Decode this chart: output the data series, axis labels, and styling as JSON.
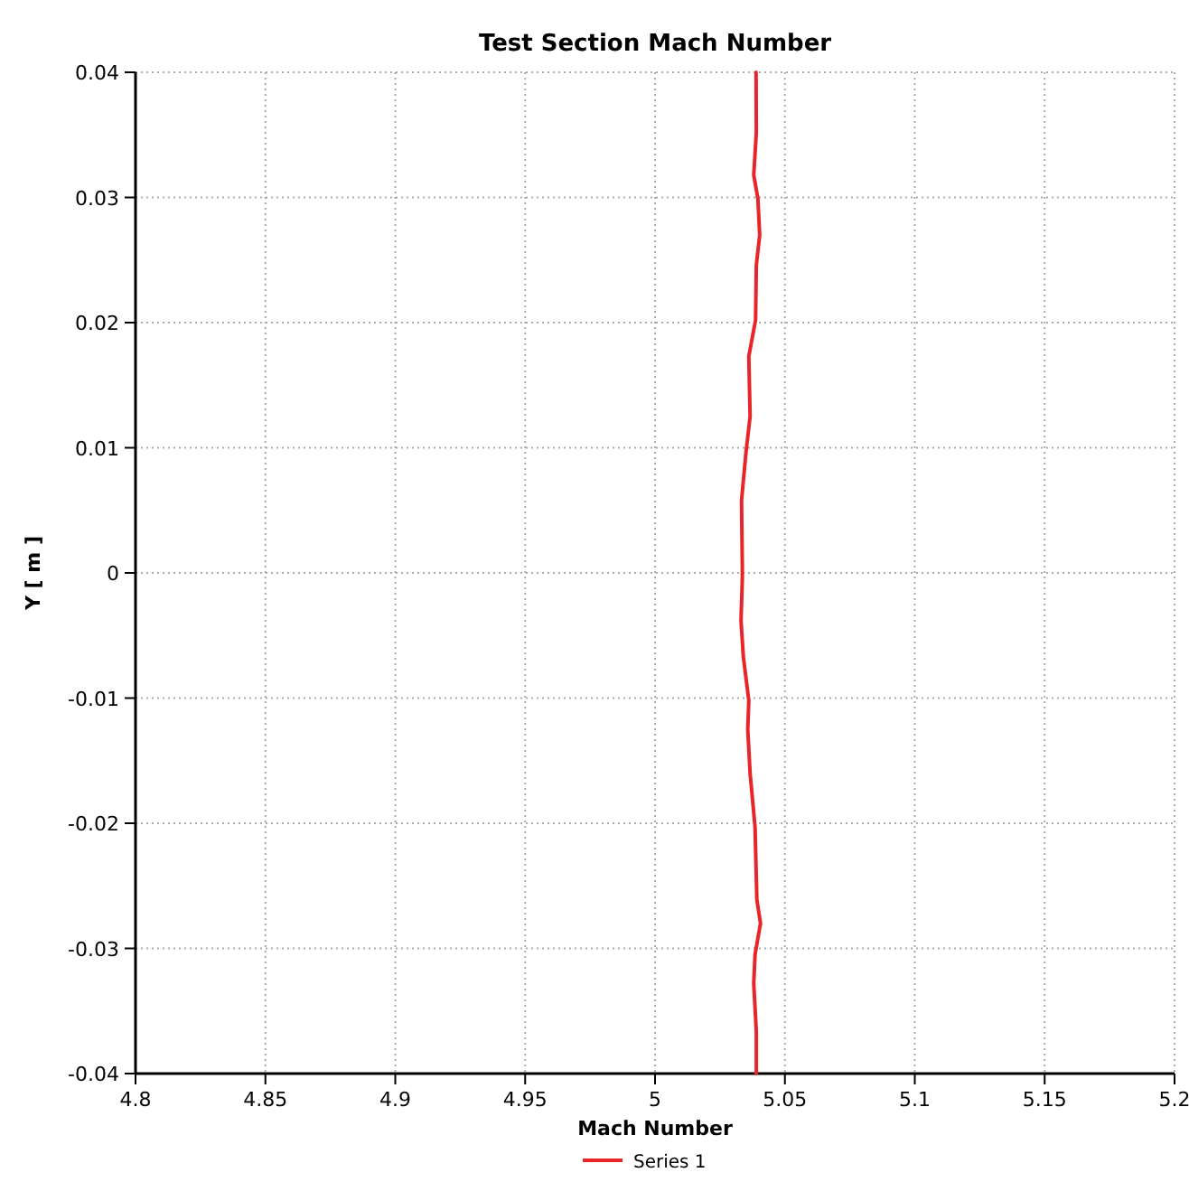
{
  "chart_data": {
    "type": "line",
    "title": "Test Section Mach Number",
    "xlabel": "Mach Number",
    "ylabel": "Y [ m ]",
    "xlim": [
      4.8,
      5.2
    ],
    "xticks": [
      4.8,
      4.85,
      4.9,
      4.95,
      5,
      5.05,
      5.1,
      5.15,
      5.2
    ],
    "ylim": [
      -0.04,
      0.04
    ],
    "yticks": [
      -0.04,
      -0.03,
      -0.02,
      -0.01,
      0,
      0.01,
      0.02,
      0.03,
      0.04
    ],
    "grid": true,
    "legend": "bottom",
    "marker": "none",
    "line_style": "solid",
    "series": [
      {
        "name": "Series 1",
        "color": "#e8262a",
        "x": [
          5.0389,
          5.039,
          5.038,
          5.0396,
          5.0403,
          5.039,
          5.0387,
          5.0361,
          5.0366,
          5.035,
          5.0333,
          5.0336,
          5.0336,
          5.0331,
          5.034,
          5.0361,
          5.0357,
          5.0366,
          5.0385,
          5.0392,
          5.0406,
          5.0385,
          5.038,
          5.039,
          5.039
        ],
        "values": [
          0.04,
          0.0352,
          0.0318,
          0.0299,
          0.027,
          0.0246,
          0.0202,
          0.0173,
          0.0125,
          0.0096,
          0.0058,
          0.0005,
          -0.0005,
          -0.0038,
          -0.0067,
          -0.0102,
          -0.0125,
          -0.016,
          -0.0203,
          -0.0261,
          -0.028,
          -0.0305,
          -0.0328,
          -0.0367,
          -0.04
        ]
      }
    ]
  }
}
